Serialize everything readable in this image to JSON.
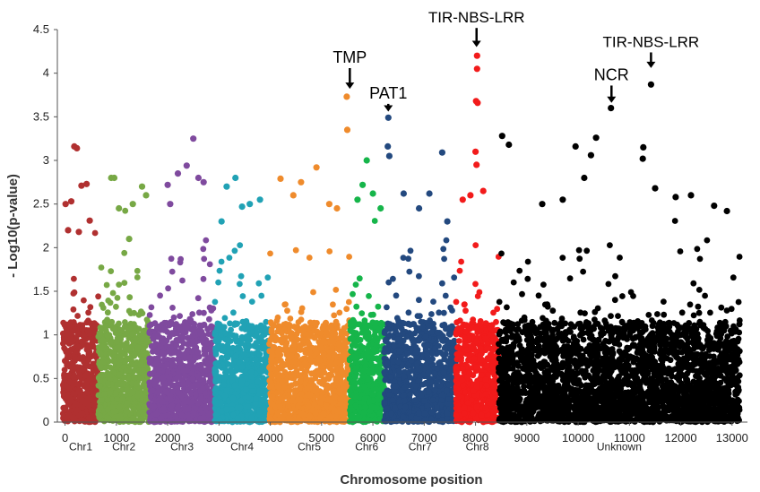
{
  "chart_data": {
    "type": "scatter",
    "title": "",
    "xlabel": "Chromosome position",
    "ylabel": "- Log10(p-value)",
    "xlim": [
      -150,
      13300
    ],
    "ylim": [
      0,
      4.5
    ],
    "xticks": [
      0,
      1000,
      2000,
      3000,
      4000,
      5000,
      6000,
      7000,
      8000,
      9000,
      10000,
      11000,
      12000,
      13000
    ],
    "xtick_labels": [
      "0",
      "1000",
      "2000",
      "3000",
      "4000",
      "5000",
      "6000",
      "7000",
      "8000",
      "9000",
      "10000",
      "11000",
      "12000",
      "13000"
    ],
    "yticks": [
      0,
      0.5,
      1,
      1.5,
      2,
      2.5,
      3,
      3.5,
      4,
      4.5
    ],
    "ytick_labels": [
      "0",
      "0.5",
      "1",
      "1.5",
      "2",
      "2.5",
      "3",
      "3.5",
      "4",
      "4.5"
    ],
    "grid": false,
    "legend": "none",
    "chromosomes": [
      {
        "label": "Chr1",
        "start": -40,
        "end": 650,
        "color": "#b03030",
        "n": 500,
        "tops": [
          [
            180,
            3.16
          ],
          [
            230,
            3.14
          ],
          [
            420,
            2.73
          ],
          [
            320,
            2.71
          ],
          [
            10,
            2.5
          ],
          [
            120,
            2.53
          ],
          [
            60,
            2.2
          ],
          [
            480,
            2.31
          ],
          [
            270,
            2.18
          ]
        ]
      },
      {
        "label": "Chr2",
        "start": 650,
        "end": 1640,
        "color": "#77a845",
        "n": 750,
        "tops": [
          [
            900,
            2.8
          ],
          [
            960,
            2.8
          ],
          [
            1500,
            2.7
          ],
          [
            1050,
            2.45
          ],
          [
            1320,
            2.5
          ],
          [
            1580,
            2.6
          ],
          [
            1250,
            2.1
          ]
        ]
      },
      {
        "label": "Chr3",
        "start": 1640,
        "end": 2920,
        "color": "#7f4a9e",
        "n": 950,
        "tops": [
          [
            2500,
            3.25
          ],
          [
            2370,
            2.94
          ],
          [
            2600,
            2.8
          ],
          [
            2200,
            2.85
          ],
          [
            2000,
            2.72
          ],
          [
            2700,
            2.75
          ],
          [
            2050,
            2.5
          ]
        ]
      },
      {
        "label": "Chr4",
        "start": 2920,
        "end": 3980,
        "color": "#21a2b5",
        "n": 750,
        "tops": [
          [
            3320,
            2.8
          ],
          [
            3150,
            2.7
          ],
          [
            3600,
            2.5
          ],
          [
            3450,
            2.47
          ],
          [
            3800,
            2.55
          ],
          [
            3050,
            2.3
          ]
        ]
      },
      {
        "label": "Chr5",
        "start": 3980,
        "end": 5540,
        "color": "#ef8b2c",
        "n": 1100,
        "tops": [
          [
            5490,
            3.73
          ],
          [
            5500,
            3.35
          ],
          [
            4900,
            2.92
          ],
          [
            4600,
            2.75
          ],
          [
            4200,
            2.79
          ],
          [
            5150,
            2.5
          ],
          [
            5300,
            2.45
          ],
          [
            4450,
            2.6
          ]
        ]
      },
      {
        "label": "Chr6",
        "start": 5540,
        "end": 6220,
        "color": "#16b54a",
        "n": 500,
        "tops": [
          [
            5880,
            3.0
          ],
          [
            5800,
            2.72
          ],
          [
            6000,
            2.62
          ],
          [
            6150,
            2.45
          ],
          [
            5700,
            2.55
          ]
        ]
      },
      {
        "label": "Chr7",
        "start": 6220,
        "end": 7620,
        "color": "#23497f",
        "n": 1000,
        "tops": [
          [
            6300,
            3.49
          ],
          [
            6290,
            3.16
          ],
          [
            6320,
            3.05
          ],
          [
            7350,
            3.09
          ],
          [
            6600,
            2.62
          ],
          [
            7100,
            2.62
          ],
          [
            6900,
            2.45
          ],
          [
            7450,
            2.3
          ]
        ]
      },
      {
        "label": "Chr8",
        "start": 7620,
        "end": 8450,
        "color": "#f21b1b",
        "n": 650,
        "tops": [
          [
            8030,
            4.2
          ],
          [
            8030,
            4.05
          ],
          [
            8010,
            3.68
          ],
          [
            8040,
            3.66
          ],
          [
            8000,
            3.1
          ],
          [
            8020,
            2.95
          ],
          [
            8150,
            2.65
          ],
          [
            7900,
            2.6
          ],
          [
            7750,
            2.55
          ]
        ]
      },
      {
        "label": "Unknown",
        "start": 8450,
        "end": 13150,
        "color": "#000000",
        "n": 2900,
        "tops": [
          [
            11420,
            3.87
          ],
          [
            10640,
            3.6
          ],
          [
            11270,
            3.15
          ],
          [
            11260,
            3.02
          ],
          [
            8520,
            3.28
          ],
          [
            8650,
            3.18
          ],
          [
            10350,
            3.26
          ],
          [
            9950,
            3.16
          ],
          [
            10250,
            3.06
          ],
          [
            10120,
            2.8
          ],
          [
            11500,
            2.68
          ],
          [
            12200,
            2.6
          ],
          [
            12650,
            2.48
          ],
          [
            12900,
            2.42
          ],
          [
            9300,
            2.5
          ],
          [
            9700,
            2.55
          ],
          [
            11900,
            2.58
          ]
        ]
      }
    ],
    "chr_label_y": -0.28,
    "annotations": [
      {
        "text": "TMP",
        "x": 5550,
        "y": 4.12,
        "arrow_tip": 3.82,
        "size": 18
      },
      {
        "text": "PAT1",
        "x": 6300,
        "y": 3.71,
        "arrow_tip": 3.56,
        "size": 18
      },
      {
        "text": "TIR-NBS-LRR",
        "x": 8020,
        "y": 4.58,
        "arrow_tip": 4.3,
        "size": 17
      },
      {
        "text": "NCR",
        "x": 10650,
        "y": 3.92,
        "arrow_tip": 3.66,
        "size": 18
      },
      {
        "text": "TIR-NBS-LRR",
        "x": 11420,
        "y": 4.3,
        "arrow_tip": 4.06,
        "size": 17
      }
    ]
  }
}
